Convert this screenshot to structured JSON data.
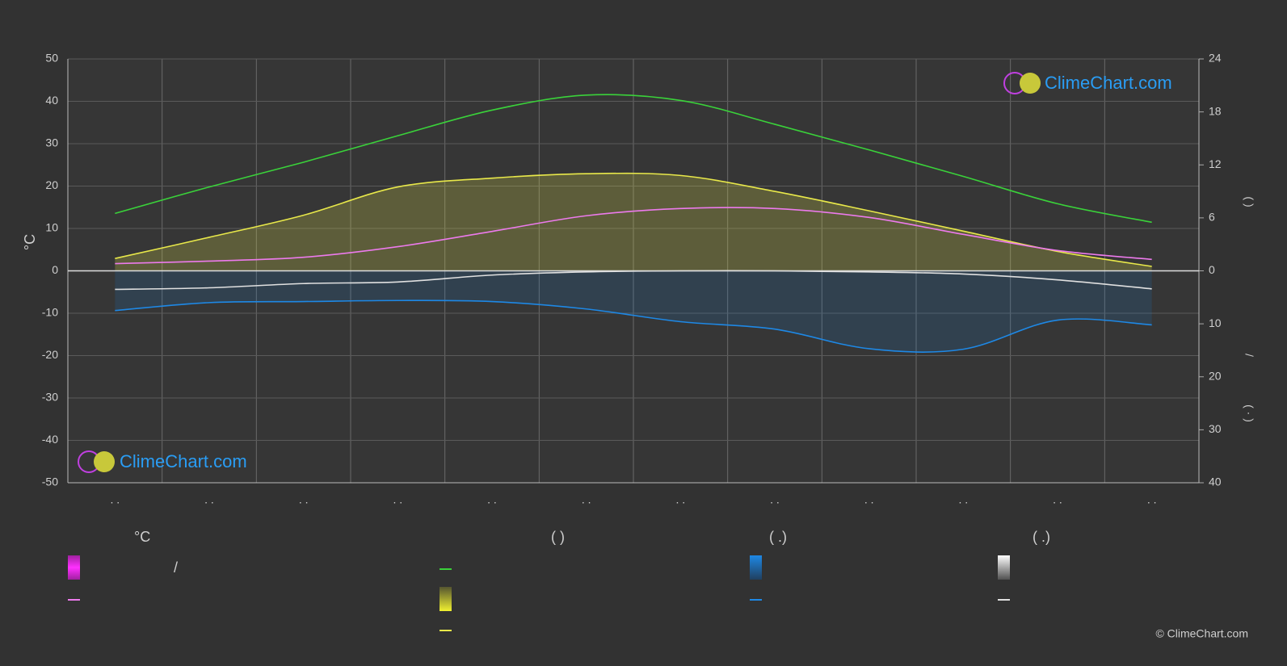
{
  "chart_data": {
    "type": "line",
    "y_label": "°C",
    "y2_labels": [
      "(     )",
      "/",
      "(  ·  )"
    ],
    "categories": [
      ". .",
      ". .",
      ". .",
      ". .",
      ". .",
      ". .",
      ". .",
      ". .",
      ". .",
      ". .",
      ". .",
      ". ."
    ],
    "ylim": [
      -50,
      50
    ],
    "yticks": [
      -50,
      -40,
      -30,
      -20,
      -10,
      0,
      10,
      20,
      30,
      40,
      50
    ],
    "y2lim": [
      0,
      24
    ],
    "y2ticks": [
      0,
      6,
      12,
      18,
      24
    ],
    "y3lim": [
      0,
      40
    ],
    "y3ticks": [
      10,
      20,
      30,
      40
    ],
    "grid": true,
    "series": [
      {
        "color": "#3ad23a",
        "axis": "y2",
        "values": [
          6.5,
          9.5,
          12.3,
          15.3,
          18.2,
          19.9,
          19.3,
          16.6,
          13.7,
          10.7,
          7.6,
          5.5
        ]
      },
      {
        "color": "#e8e84a",
        "axis": "y2",
        "values": [
          1.4,
          3.8,
          6.3,
          9.5,
          10.5,
          11.0,
          10.8,
          9.0,
          6.8,
          4.5,
          2.2,
          0.5
        ]
      },
      {
        "color": "#ec7aec",
        "axis": "y",
        "values": [
          1.7,
          2.3,
          3.2,
          5.7,
          9.3,
          13.0,
          14.7,
          14.7,
          12.6,
          8.6,
          4.8,
          2.7
        ]
      },
      {
        "color": "#1e88e5",
        "axis": "y3",
        "values": [
          7.5,
          6.0,
          5.8,
          5.6,
          5.8,
          7.2,
          9.6,
          11.0,
          14.7,
          14.8,
          9.3,
          10.2
        ]
      },
      {
        "color": "#e0e0e0",
        "axis": "y3",
        "values": [
          3.5,
          3.2,
          2.4,
          2.1,
          0.8,
          0.2,
          0.0,
          0.0,
          0.2,
          0.6,
          1.7,
          3.4
        ]
      }
    ],
    "legend_headers": [
      "°C",
      "(          )",
      "(   .)",
      "(   .)"
    ],
    "legend_text": "/",
    "watermarks": [
      "ClimeChart.com",
      "ClimeChart.com"
    ],
    "copyright": "© ClimeChart.com"
  }
}
